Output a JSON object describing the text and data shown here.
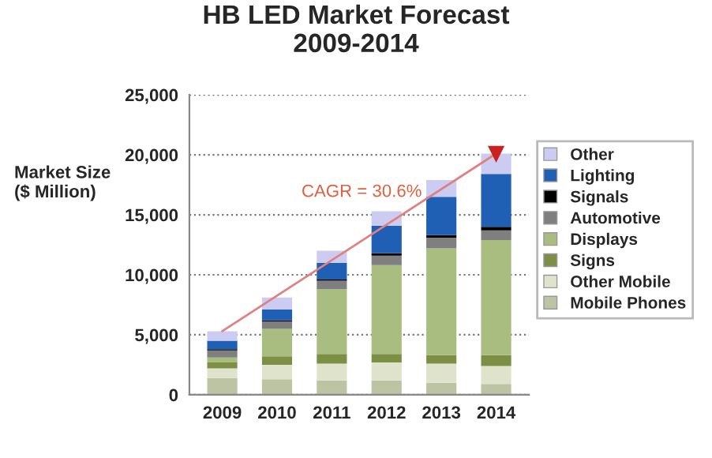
{
  "chart_data": {
    "type": "bar",
    "title": "HB LED Market Forecast\n2009-2014",
    "ylabel": "Market Size\n($ Million)",
    "categories": [
      "2009",
      "2010",
      "2011",
      "2012",
      "2013",
      "2014"
    ],
    "stacked": true,
    "series": [
      {
        "name": "Mobile Phones",
        "color": "#bcc4a4",
        "values": [
          1400,
          1300,
          1200,
          1200,
          1000,
          900
        ]
      },
      {
        "name": "Other Mobile",
        "color": "#dfe3cc",
        "values": [
          800,
          1200,
          1400,
          1500,
          1600,
          1500
        ]
      },
      {
        "name": "Signs",
        "color": "#7d8f45",
        "values": [
          500,
          700,
          800,
          700,
          700,
          900
        ]
      },
      {
        "name": "Displays",
        "color": "#a9bd80",
        "values": [
          400,
          2300,
          5400,
          7400,
          8900,
          9600
        ]
      },
      {
        "name": "Automotive",
        "color": "#7f7f7f",
        "values": [
          600,
          600,
          700,
          800,
          900,
          800
        ]
      },
      {
        "name": "Signals",
        "color": "#000000",
        "values": [
          100,
          100,
          100,
          200,
          200,
          300
        ]
      },
      {
        "name": "Lighting",
        "color": "#1f5fb4",
        "values": [
          700,
          900,
          1400,
          2300,
          3200,
          4400
        ]
      },
      {
        "name": "Other",
        "color": "#ccccf2",
        "values": [
          800,
          1000,
          1000,
          1200,
          1400,
          1700
        ]
      },
      {
        "type": "line",
        "color": "#e08080",
        "values": [
          5300,
          null,
          null,
          null,
          null,
          20100
        ],
        "marker": "triangle"
      }
    ],
    "ylim": [
      0,
      25000
    ],
    "yticks": [
      0,
      {
        "value": 5000,
        "label": "5,000"
      },
      {
        "value": 10000,
        "label": "10,000"
      },
      {
        "value": 15000,
        "label": "15,000"
      },
      {
        "value": 20000,
        "label": "20,000"
      },
      {
        "value": 25000,
        "label": "25,000"
      }
    ],
    "grid": "y",
    "legend": "right",
    "annotations": [
      "CAGR = 30.6%"
    ]
  }
}
